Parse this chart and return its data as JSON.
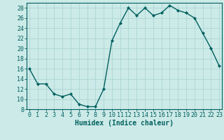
{
  "x": [
    0,
    1,
    2,
    3,
    4,
    5,
    6,
    7,
    8,
    9,
    10,
    11,
    12,
    13,
    14,
    15,
    16,
    17,
    18,
    19,
    20,
    21,
    22,
    23
  ],
  "y": [
    16,
    13,
    13,
    11,
    10.5,
    11,
    9,
    8.5,
    8.5,
    12,
    21.5,
    25,
    28,
    26.5,
    28,
    26.5,
    27,
    28.5,
    27.5,
    27,
    26,
    23,
    20,
    16.5
  ],
  "line_color": "#006060",
  "marker": "D",
  "marker_size": 2.0,
  "line_width": 1.0,
  "bg_color": "#cceae7",
  "grid_color": "#b0d8d8",
  "xlabel": "Humidex (Indice chaleur)",
  "xlabel_fontsize": 7,
  "tick_color": "#006060",
  "tick_fontsize": 6,
  "ylim": [
    8,
    29
  ],
  "yticks": [
    8,
    10,
    12,
    14,
    16,
    18,
    20,
    22,
    24,
    26,
    28
  ],
  "xticks": [
    0,
    1,
    2,
    3,
    4,
    5,
    6,
    7,
    8,
    9,
    10,
    11,
    12,
    13,
    14,
    15,
    16,
    17,
    18,
    19,
    20,
    21,
    22,
    23
  ],
  "xlim": [
    -0.3,
    23.3
  ]
}
